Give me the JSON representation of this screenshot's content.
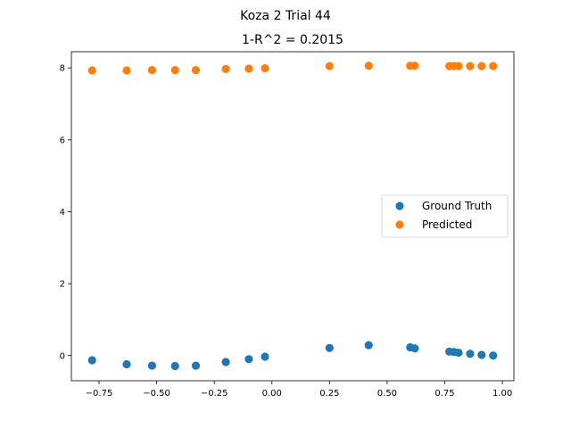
{
  "figure": {
    "suptitle": "Koza 2 Trial 44",
    "title": "1-R^2 = 0.2015"
  },
  "chart_data": {
    "type": "scatter",
    "title": "1-R^2 = 0.2015",
    "xlabel": "",
    "ylabel": "",
    "xlim": [
      -0.87,
      1.05
    ],
    "ylim": [
      -0.7,
      8.45
    ],
    "xticks": [
      -0.75,
      -0.5,
      -0.25,
      0.0,
      0.25,
      0.5,
      0.75,
      1.0
    ],
    "xtick_labels": [
      "−0.75",
      "−0.50",
      "−0.25",
      "0.00",
      "0.25",
      "0.50",
      "0.75",
      "1.00"
    ],
    "yticks": [
      0,
      2,
      4,
      6,
      8
    ],
    "ytick_labels": [
      "0",
      "2",
      "4",
      "6",
      "8"
    ],
    "grid": false,
    "legend_position": "center-right",
    "series": [
      {
        "name": "Ground Truth",
        "color": "#1f77b4",
        "x": [
          -0.78,
          -0.63,
          -0.52,
          -0.42,
          -0.33,
          -0.2,
          -0.1,
          -0.03,
          0.25,
          0.42,
          0.6,
          0.62,
          0.77,
          0.79,
          0.81,
          0.86,
          0.91,
          0.96
        ],
        "y": [
          -0.13,
          -0.24,
          -0.28,
          -0.29,
          -0.28,
          -0.18,
          -0.1,
          -0.03,
          0.21,
          0.29,
          0.23,
          0.2,
          0.11,
          0.1,
          0.08,
          0.05,
          0.02,
          0.0
        ]
      },
      {
        "name": "Predicted",
        "color": "#ff7f0e",
        "x": [
          -0.78,
          -0.63,
          -0.52,
          -0.42,
          -0.33,
          -0.2,
          -0.1,
          -0.03,
          0.25,
          0.42,
          0.6,
          0.62,
          0.77,
          0.79,
          0.81,
          0.86,
          0.91,
          0.96
        ],
        "y": [
          7.93,
          7.93,
          7.94,
          7.94,
          7.94,
          7.97,
          7.98,
          7.99,
          8.05,
          8.06,
          8.06,
          8.06,
          8.05,
          8.05,
          8.05,
          8.05,
          8.05,
          8.05
        ]
      }
    ]
  }
}
